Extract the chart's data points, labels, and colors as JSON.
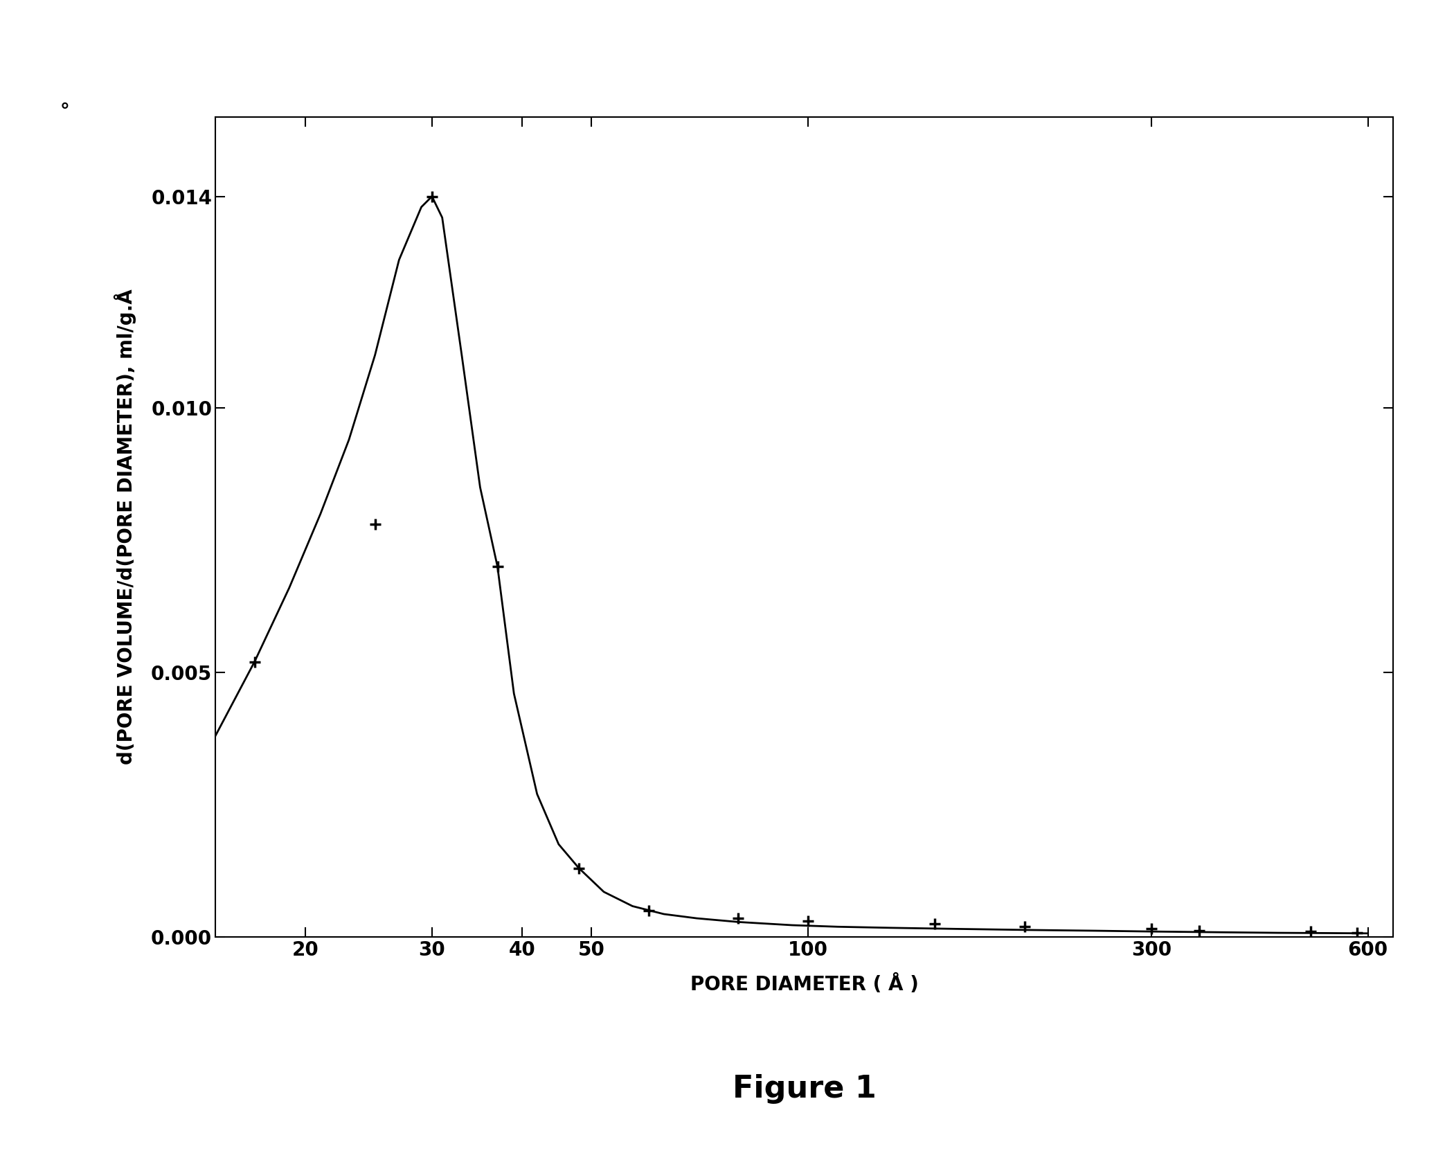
{
  "title": "Figure 1",
  "xlabel": "PORE DIAMETER ( Å )",
  "ylabel": "d(PORE VOLUME/d(PORE DIAMETER), ml/g.Å",
  "background_color": "#ffffff",
  "line_color": "#000000",
  "marker_color": "#000000",
  "data_points_x": [
    17,
    25,
    30,
    37,
    48,
    60,
    80,
    100,
    150,
    200,
    300,
    350,
    500,
    580
  ],
  "data_points_y": [
    0.0052,
    0.0078,
    0.014,
    0.007,
    0.0013,
    0.0005,
    0.00035,
    0.0003,
    0.00025,
    0.0002,
    0.00015,
    0.00012,
    0.0001,
    8e-05
  ],
  "curve_x": [
    15,
    17,
    19,
    21,
    23,
    25,
    27,
    29,
    30,
    31,
    33,
    35,
    37,
    39,
    42,
    45,
    48,
    52,
    57,
    63,
    70,
    80,
    95,
    110,
    130,
    160,
    200,
    250,
    300,
    380,
    450,
    530,
    600
  ],
  "curve_y": [
    0.0038,
    0.0052,
    0.0066,
    0.008,
    0.0094,
    0.011,
    0.0128,
    0.0138,
    0.014,
    0.0136,
    0.011,
    0.0085,
    0.007,
    0.0046,
    0.0027,
    0.00175,
    0.0013,
    0.00085,
    0.00058,
    0.00043,
    0.00035,
    0.00028,
    0.00022,
    0.00019,
    0.00017,
    0.00015,
    0.00013,
    0.000115,
    0.0001,
    8.5e-05,
    7.5e-05,
    7e-05,
    6.5e-05
  ],
  "xlim_log": [
    15,
    650
  ],
  "xticks": [
    20,
    30,
    40,
    50,
    100,
    300,
    600
  ],
  "xtick_labels": [
    "20",
    "30",
    "40",
    "50",
    "100",
    "300",
    "600"
  ],
  "ylim": [
    0.0,
    0.0155
  ],
  "yticks": [
    0.0,
    0.005,
    0.01,
    0.014
  ],
  "ytick_labels": [
    "0.000",
    "0.005",
    "0.010",
    "0.014"
  ],
  "title_fontsize": 32,
  "axis_label_fontsize": 20,
  "tick_fontsize": 20,
  "marker_size": 12,
  "marker_edge_width": 2.5,
  "line_width": 2.0,
  "degree_symbol": "°"
}
